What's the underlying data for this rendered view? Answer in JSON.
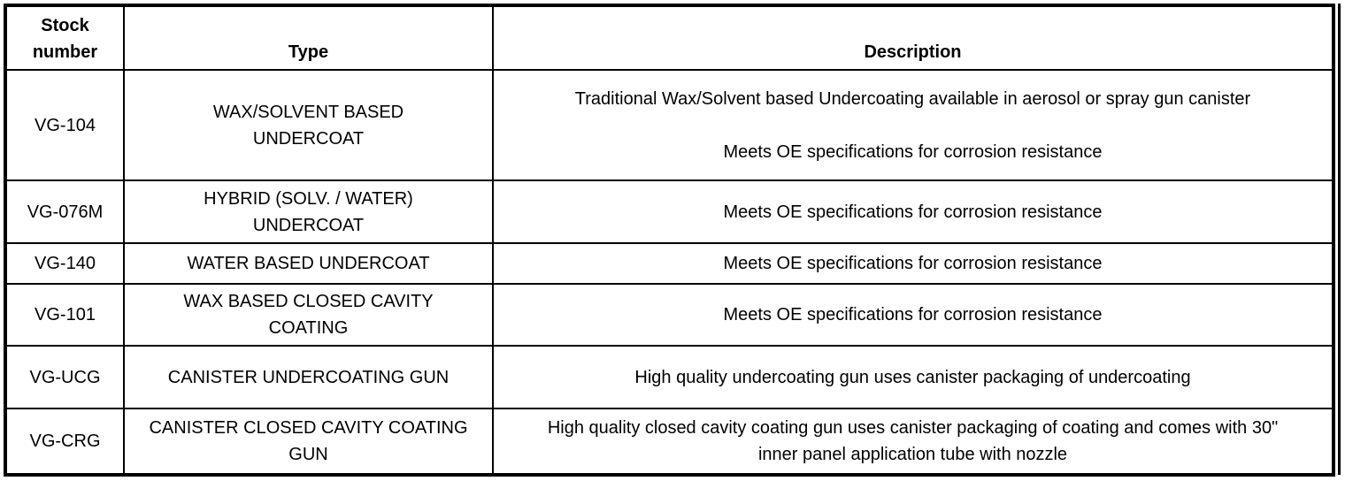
{
  "table": {
    "headers": [
      "Stock number",
      "Type",
      "Description"
    ],
    "rows": [
      {
        "stock": "VG-104",
        "type": "WAX/SOLVENT BASED UNDERCOAT",
        "description": [
          "Traditional Wax/Solvent based Undercoating available in aerosol or spray gun canister",
          "Meets OE specifications for corrosion resistance"
        ]
      },
      {
        "stock": "VG-076M",
        "type": "HYBRID (SOLV. / WATER) UNDERCOAT",
        "description": [
          "Meets OE specifications for corrosion resistance"
        ]
      },
      {
        "stock": "VG-140",
        "type": "WATER BASED UNDERCOAT",
        "description": [
          "Meets OE specifications for corrosion resistance"
        ]
      },
      {
        "stock": "VG-101",
        "type": "WAX BASED CLOSED CAVITY COATING",
        "description": [
          "Meets OE specifications for corrosion resistance"
        ]
      },
      {
        "stock": "VG-UCG",
        "type": "CANISTER UNDERCOATING GUN",
        "description": [
          "High quality undercoating gun uses canister packaging of undercoating"
        ]
      },
      {
        "stock": "VG-CRG",
        "type": "CANISTER CLOSED CAVITY COATING GUN",
        "description": [
          "High quality closed cavity coating gun uses canister packaging of coating and comes with 30\" inner panel application tube with nozzle"
        ]
      }
    ]
  }
}
